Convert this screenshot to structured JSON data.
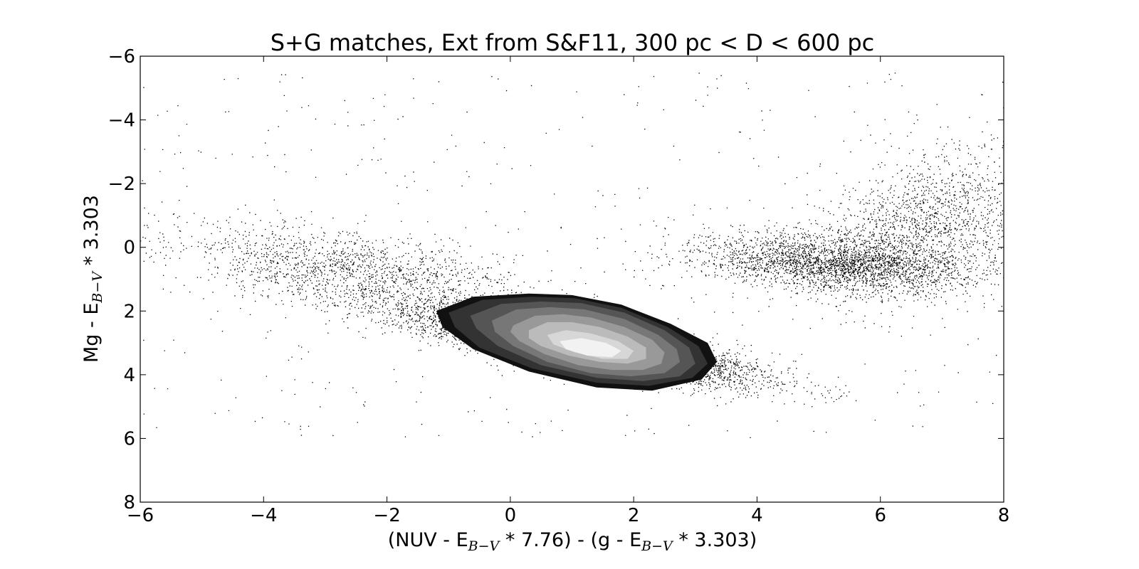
{
  "chart_data": {
    "type": "scatter",
    "title": "S+G matches, Ext from S&F11, 300 pc < D < 600 pc",
    "xlabel": {
      "p1": "(NUV - E",
      "s1": "B−V",
      "p2": " * 7.76) - (g - E",
      "s2": "B−V",
      "p3": " * 3.303)"
    },
    "ylabel": {
      "p1": "Mg - E",
      "s1": "B−V",
      "p2": " * 3.303"
    },
    "xlim": [
      -6,
      8
    ],
    "ylim": [
      8,
      -6
    ],
    "y_inverted": true,
    "x_ticks": [
      -6,
      -4,
      -2,
      0,
      2,
      4,
      6,
      8
    ],
    "x_tick_labels": [
      "−6",
      "−4",
      "−2",
      "0",
      "2",
      "4",
      "6",
      "8"
    ],
    "y_ticks": [
      -6,
      -4,
      -2,
      0,
      2,
      4,
      6,
      8
    ],
    "y_tick_labels": [
      "−6",
      "−4",
      "−2",
      "0",
      "2",
      "4",
      "6",
      "8"
    ],
    "grid": false,
    "legend": "none",
    "point_color": "#000000",
    "density_clusters": [
      {
        "name": "main sequence",
        "cx": 1.2,
        "cy": 3.1,
        "sx": 1.3,
        "sy": 0.55,
        "corr": 0.8,
        "weight": 0.55
      },
      {
        "name": "red clump",
        "cx": 5.3,
        "cy": 0.5,
        "sx": 1.1,
        "sy": 0.45,
        "corr": 0.3,
        "weight": 0.2
      },
      {
        "name": "blue tail",
        "cx": -2.5,
        "cy": 0.8,
        "sx": 1.5,
        "sy": 0.8,
        "corr": 0.6,
        "weight": 0.13
      },
      {
        "name": "red giants",
        "cx": 6.8,
        "cy": -0.8,
        "sx": 0.9,
        "sy": 1.1,
        "corr": -0.3,
        "weight": 0.12
      }
    ],
    "contour_levels": [
      {
        "level": 1,
        "color": "#111111",
        "points": [
          [
            -1.2,
            2.0
          ],
          [
            -0.6,
            1.55
          ],
          [
            0.3,
            1.45
          ],
          [
            1.0,
            1.5
          ],
          [
            1.8,
            1.8
          ],
          [
            2.6,
            2.4
          ],
          [
            3.2,
            3.0
          ],
          [
            3.35,
            3.6
          ],
          [
            3.1,
            4.15
          ],
          [
            2.3,
            4.5
          ],
          [
            1.4,
            4.4
          ],
          [
            0.3,
            3.9
          ],
          [
            -0.6,
            3.2
          ],
          [
            -1.1,
            2.5
          ]
        ]
      },
      {
        "level": 2,
        "color": "#333333",
        "points": [
          [
            -1.0,
            2.05
          ],
          [
            -0.45,
            1.65
          ],
          [
            0.35,
            1.55
          ],
          [
            1.05,
            1.6
          ],
          [
            1.8,
            1.9
          ],
          [
            2.55,
            2.5
          ],
          [
            3.05,
            3.1
          ],
          [
            3.2,
            3.65
          ],
          [
            2.95,
            4.1
          ],
          [
            2.25,
            4.35
          ],
          [
            1.4,
            4.25
          ],
          [
            0.35,
            3.8
          ],
          [
            -0.5,
            3.15
          ],
          [
            -0.9,
            2.5
          ]
        ]
      },
      {
        "level": 3,
        "color": "#555555",
        "points": [
          [
            -0.65,
            2.15
          ],
          [
            -0.15,
            1.78
          ],
          [
            0.5,
            1.7
          ],
          [
            1.15,
            1.75
          ],
          [
            1.85,
            2.05
          ],
          [
            2.5,
            2.6
          ],
          [
            2.9,
            3.15
          ],
          [
            3.0,
            3.65
          ],
          [
            2.75,
            4.05
          ],
          [
            2.15,
            4.2
          ],
          [
            1.4,
            4.1
          ],
          [
            0.5,
            3.7
          ],
          [
            -0.2,
            3.1
          ],
          [
            -0.55,
            2.55
          ]
        ]
      },
      {
        "level": 4,
        "color": "#777777",
        "points": [
          [
            -0.3,
            2.3
          ],
          [
            0.1,
            1.95
          ],
          [
            0.65,
            1.88
          ],
          [
            1.2,
            1.95
          ],
          [
            1.85,
            2.25
          ],
          [
            2.4,
            2.75
          ],
          [
            2.7,
            3.2
          ],
          [
            2.75,
            3.6
          ],
          [
            2.5,
            3.95
          ],
          [
            1.95,
            4.05
          ],
          [
            1.3,
            3.95
          ],
          [
            0.6,
            3.6
          ],
          [
            0.05,
            3.1
          ],
          [
            -0.25,
            2.65
          ]
        ]
      },
      {
        "level": 5,
        "color": "#999999",
        "points": [
          [
            0.05,
            2.45
          ],
          [
            0.4,
            2.15
          ],
          [
            0.85,
            2.1
          ],
          [
            1.3,
            2.2
          ],
          [
            1.85,
            2.5
          ],
          [
            2.3,
            2.9
          ],
          [
            2.5,
            3.3
          ],
          [
            2.45,
            3.65
          ],
          [
            2.15,
            3.85
          ],
          [
            1.65,
            3.85
          ],
          [
            1.1,
            3.7
          ],
          [
            0.55,
            3.35
          ],
          [
            0.15,
            2.95
          ],
          [
            0.0,
            2.65
          ]
        ]
      },
      {
        "level": 6,
        "color": "#bbbbbb",
        "points": [
          [
            0.3,
            2.6
          ],
          [
            0.6,
            2.35
          ],
          [
            1.0,
            2.35
          ],
          [
            1.45,
            2.5
          ],
          [
            1.9,
            2.8
          ],
          [
            2.2,
            3.15
          ],
          [
            2.2,
            3.5
          ],
          [
            1.9,
            3.65
          ],
          [
            1.45,
            3.6
          ],
          [
            0.95,
            3.4
          ],
          [
            0.5,
            3.1
          ],
          [
            0.3,
            2.85
          ]
        ]
      },
      {
        "level": 7,
        "color": "#d7d7d7",
        "points": [
          [
            0.6,
            2.75
          ],
          [
            0.9,
            2.6
          ],
          [
            1.3,
            2.7
          ],
          [
            1.75,
            2.95
          ],
          [
            2.0,
            3.25
          ],
          [
            1.9,
            3.5
          ],
          [
            1.5,
            3.5
          ],
          [
            1.05,
            3.3
          ],
          [
            0.7,
            3.05
          ]
        ]
      },
      {
        "level": 8,
        "color": "#f2f2f2",
        "points": [
          [
            0.8,
            2.95
          ],
          [
            1.15,
            2.85
          ],
          [
            1.55,
            3.0
          ],
          [
            1.8,
            3.25
          ],
          [
            1.65,
            3.45
          ],
          [
            1.25,
            3.4
          ],
          [
            0.9,
            3.2
          ]
        ]
      }
    ]
  }
}
